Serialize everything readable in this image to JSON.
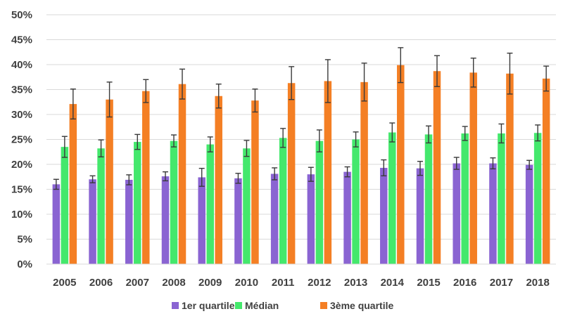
{
  "chart_data": {
    "type": "bar",
    "categories": [
      "2005",
      "2006",
      "2007",
      "2008",
      "2009",
      "2010",
      "2011",
      "2012",
      "2013",
      "2014",
      "2015",
      "2016",
      "2017",
      "2018"
    ],
    "series": [
      {
        "name": "1er quartile",
        "color": "#8a64d2",
        "values": [
          16.0,
          17.0,
          16.9,
          17.6,
          17.4,
          17.2,
          18.1,
          18.0,
          18.5,
          19.3,
          19.2,
          20.2,
          20.2,
          19.9
        ],
        "error": [
          1.0,
          0.7,
          1.0,
          0.9,
          1.8,
          1.0,
          1.2,
          1.4,
          1.0,
          1.6,
          1.4,
          1.2,
          1.1,
          0.9
        ]
      },
      {
        "name": "Médian",
        "color": "#44e86c",
        "values": [
          23.5,
          23.2,
          24.5,
          24.7,
          24.0,
          23.2,
          25.3,
          24.7,
          25.0,
          26.4,
          26.0,
          26.2,
          26.2,
          26.3
        ],
        "error": [
          2.1,
          1.7,
          1.5,
          1.2,
          1.5,
          1.6,
          1.9,
          2.2,
          1.5,
          1.9,
          1.7,
          1.4,
          1.9,
          1.6
        ]
      },
      {
        "name": "3ème quartile",
        "color": "#f47f24",
        "values": [
          32.1,
          33.0,
          34.7,
          36.1,
          33.7,
          32.8,
          36.3,
          36.7,
          36.5,
          39.9,
          38.7,
          38.4,
          38.2,
          37.2
        ],
        "error": [
          3.0,
          3.5,
          2.3,
          3.0,
          2.4,
          2.3,
          3.3,
          4.3,
          3.8,
          3.5,
          3.1,
          2.9,
          4.1,
          2.5
        ]
      }
    ],
    "y_ticks": [
      "0%",
      "5%",
      "10%",
      "15%",
      "20%",
      "25%",
      "30%",
      "35%",
      "40%",
      "45%",
      "50%"
    ],
    "ylim": [
      0,
      50
    ],
    "grid": true,
    "legend_position": "bottom",
    "title": "",
    "xlabel": "",
    "ylabel": ""
  }
}
